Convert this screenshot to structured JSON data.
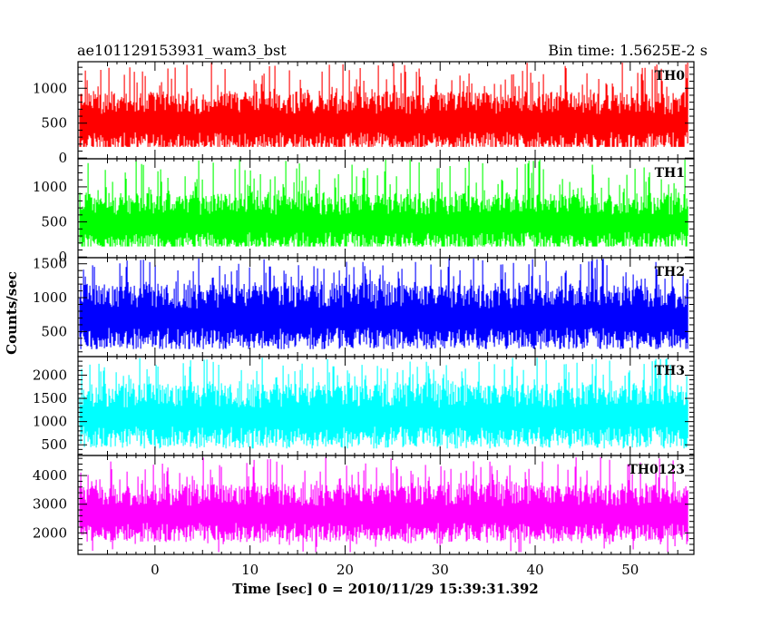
{
  "chart_data": {
    "type": "line",
    "title_left": "ae101129153931_wam3_bst",
    "title_right": "Bin time: 1.5625E-2 s",
    "xlabel": "Time [sec] 0 = 2010/11/29 15:39:31.392",
    "ylabel": "Counts/sec",
    "xlim": [
      -8.1,
      56.7
    ],
    "x_data_range": [
      -7.9,
      56.1
    ],
    "x_ticks": [
      0,
      10,
      20,
      30,
      40,
      50
    ],
    "grid": false,
    "panels": [
      {
        "name": "TH0",
        "color": "#ff0000",
        "ylim": [
          -10,
          1380
        ],
        "y_ticks": [
          0,
          500,
          1000
        ],
        "mean": 500,
        "spread": 210,
        "peak": 1380,
        "floor": 160
      },
      {
        "name": "TH1",
        "color": "#00ff00",
        "ylim": [
          -10,
          1400
        ],
        "y_ticks": [
          0,
          500,
          1000
        ],
        "mean": 480,
        "spread": 200,
        "peak": 1400,
        "floor": 150
      },
      {
        "name": "TH2",
        "color": "#0000ff",
        "ylim": [
          130,
          1590
        ],
        "y_ticks": [
          500,
          1000,
          1500
        ],
        "mean": 700,
        "spread": 230,
        "peak": 1590,
        "floor": 240
      },
      {
        "name": "TH3",
        "color": "#00ffff",
        "ylim": [
          270,
          2400
        ],
        "y_ticks": [
          500,
          1000,
          1500,
          2000
        ],
        "mean": 1100,
        "spread": 330,
        "peak": 2380,
        "floor": 420
      },
      {
        "name": "TH0123",
        "color": "#ff00ff",
        "ylim": [
          1250,
          4700
        ],
        "y_ticks": [
          2000,
          3000,
          4000
        ],
        "mean": 2650,
        "spread": 480,
        "peak": 4650,
        "floor": 1330
      }
    ]
  }
}
